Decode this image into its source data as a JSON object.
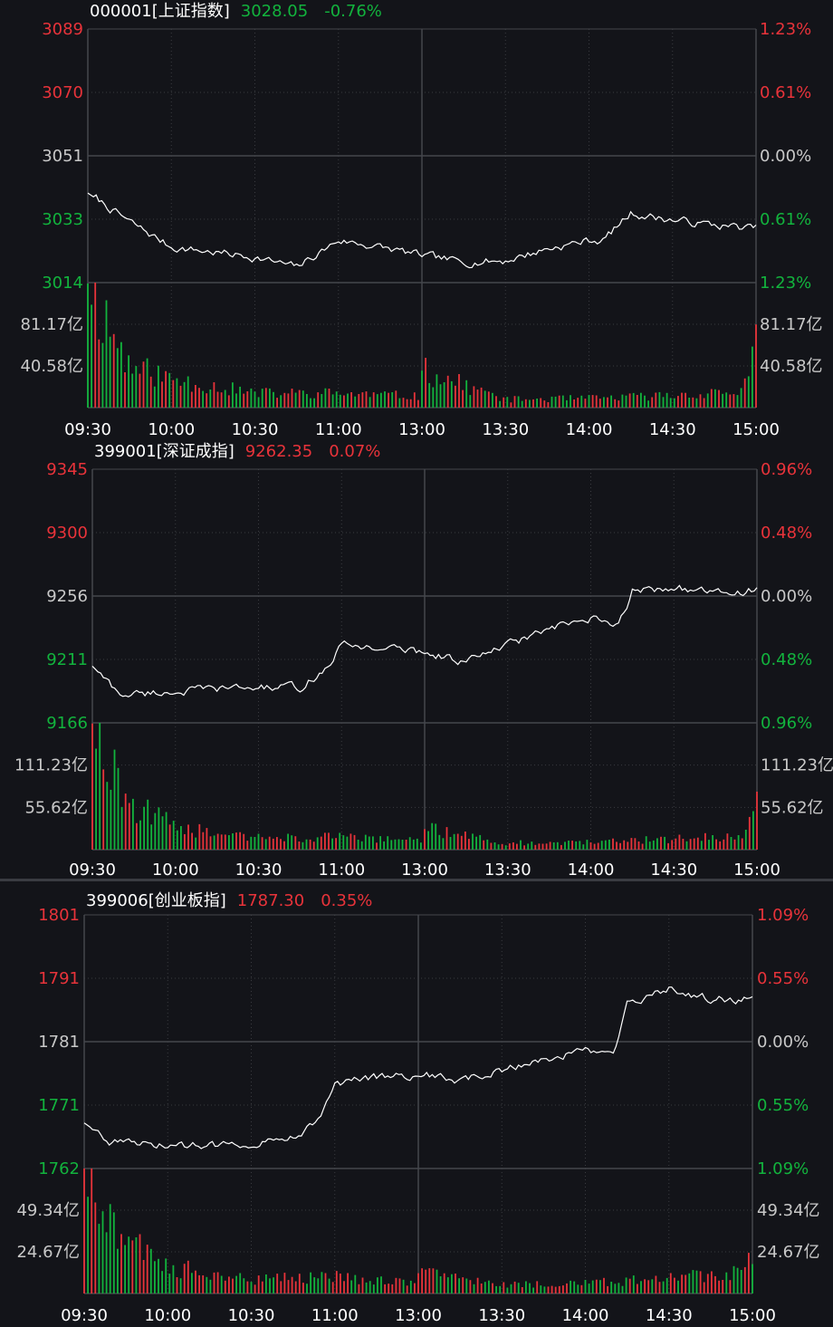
{
  "colors": {
    "background": "#131419",
    "grid": "#3a3b40",
    "frame": "#44464c",
    "up": "#e8333a",
    "down": "#12b33d",
    "neutral": "#c8c8c8",
    "line": "#ffffff",
    "axis_text": "#c8c8c8"
  },
  "time_labels": [
    "09:30",
    "10:00",
    "10:30",
    "11:00",
    "13:00",
    "13:30",
    "14:00",
    "14:30",
    "15:00"
  ],
  "chart_data": [
    {
      "type": "line",
      "code": "000001",
      "name": "[上证指数]",
      "price": "3028.05",
      "change": "-0.76%",
      "change_direction": "down",
      "price_ticks": [
        "3089",
        "3070",
        "3051",
        "3033",
        "3014"
      ],
      "pct_ticks": [
        "1.23%",
        "0.61%",
        "0.00%",
        "0.61%",
        "1.23%"
      ],
      "tick_dirs": [
        "up",
        "up",
        "neutral",
        "down",
        "down"
      ],
      "ylim": [
        3014,
        3089
      ],
      "prev_close": 3051,
      "volume_ticks": [
        "81.17亿",
        "40.58亿"
      ],
      "volume_max": 121.75,
      "x": [
        "09:30",
        "09:45",
        "10:00",
        "10:15",
        "10:30",
        "10:45",
        "11:00",
        "11:15",
        "11:30",
        "13:15",
        "13:30",
        "13:45",
        "14:00",
        "14:05",
        "14:15",
        "14:30",
        "14:45",
        "15:00"
      ],
      "values": [
        3040.5,
        3032.0,
        3024.5,
        3023.0,
        3021.5,
        3018.5,
        3026.5,
        3024.5,
        3022.0,
        3020.0,
        3020.5,
        3024.0,
        3026.5,
        3026.5,
        3034.5,
        3032.5,
        3031.0,
        3030.0
      ],
      "volume_x": [
        "09:30",
        "09:45",
        "10:00",
        "10:30",
        "11:00",
        "11:30",
        "13:00",
        "13:30",
        "14:00",
        "14:30",
        "14:55",
        "15:00"
      ],
      "volume_values": [
        121,
        40,
        28,
        14,
        14,
        11,
        36,
        8,
        9,
        12,
        16,
        60
      ]
    },
    {
      "type": "line",
      "code": "399001",
      "name": "[深证成指]",
      "price": "9262.35",
      "change": "0.07%",
      "change_direction": "up",
      "price_ticks": [
        "9345",
        "9300",
        "9256",
        "9211",
        "9166"
      ],
      "pct_ticks": [
        "0.96%",
        "0.48%",
        "0.00%",
        "0.48%",
        "0.96%"
      ],
      "tick_dirs": [
        "up",
        "up",
        "neutral",
        "down",
        "down"
      ],
      "ylim": [
        9166,
        9345
      ],
      "prev_close": 9256,
      "volume_ticks": [
        "111.23亿",
        "55.62亿"
      ],
      "volume_max": 166.85,
      "x": [
        "09:30",
        "09:40",
        "10:00",
        "10:15",
        "10:30",
        "10:45",
        "10:55",
        "11:00",
        "11:15",
        "11:30",
        "13:15",
        "13:30",
        "13:45",
        "14:00",
        "14:10",
        "14:15",
        "14:30",
        "14:45",
        "15:00"
      ],
      "values": [
        9206.0,
        9186.0,
        9188.0,
        9190.0,
        9191.0,
        9191.0,
        9205.0,
        9221.0,
        9219.0,
        9216.0,
        9209.0,
        9221.0,
        9232.0,
        9239.0,
        9234.0,
        9259.0,
        9262.0,
        9257.0,
        9260.0
      ],
      "volume_x": [
        "09:30",
        "09:45",
        "10:00",
        "10:30",
        "11:00",
        "11:30",
        "13:00",
        "13:30",
        "14:00",
        "14:30",
        "14:55",
        "15:00"
      ],
      "volume_values": [
        166,
        60,
        30,
        15,
        17,
        11,
        27,
        9,
        10,
        14,
        18,
        55
      ]
    },
    {
      "type": "line",
      "code": "399006",
      "name": "[创业板指]",
      "price": "1787.30",
      "change": "0.35%",
      "change_direction": "up",
      "price_ticks": [
        "1801",
        "1791",
        "1781",
        "1771",
        "1762"
      ],
      "pct_ticks": [
        "1.09%",
        "0.55%",
        "0.00%",
        "0.55%",
        "1.09%"
      ],
      "tick_dirs": [
        "up",
        "up",
        "neutral",
        "down",
        "down"
      ],
      "ylim": [
        1762,
        1801
      ],
      "prev_close": 1781,
      "volume_ticks": [
        "49.34亿",
        "24.67亿"
      ],
      "volume_max": 74.01,
      "x": [
        "09:30",
        "09:40",
        "10:00",
        "10:15",
        "10:30",
        "10:45",
        "10:55",
        "11:00",
        "11:15",
        "11:30",
        "13:15",
        "13:30",
        "13:45",
        "14:00",
        "14:10",
        "14:15",
        "14:30",
        "14:45",
        "15:00"
      ],
      "values": [
        1769.0,
        1766.0,
        1765.5,
        1765.5,
        1766.0,
        1767.0,
        1769.5,
        1775.0,
        1776.0,
        1776.5,
        1775.5,
        1777.0,
        1779.0,
        1780.0,
        1779.5,
        1787.0,
        1789.5,
        1788.0,
        1788.0
      ],
      "volume_x": [
        "09:30",
        "09:45",
        "10:00",
        "10:30",
        "11:00",
        "11:30",
        "13:00",
        "13:30",
        "14:00",
        "14:30",
        "14:55",
        "15:00"
      ],
      "volume_values": [
        74,
        30,
        16,
        8,
        10,
        6,
        12,
        5,
        6,
        9,
        12,
        28
      ]
    }
  ]
}
